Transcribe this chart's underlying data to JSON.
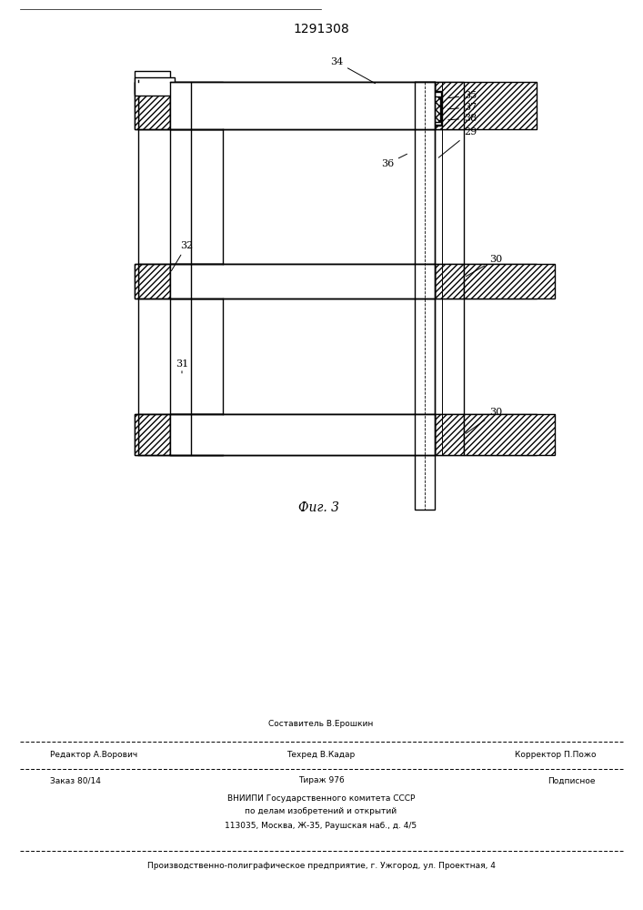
{
  "patent_number": "1291308",
  "fig_label": "Фиг. 3",
  "background_color": "#ffffff",
  "line_color": "#000000",
  "footer": {
    "line1_center_top": "Составитель В.Ерошкин",
    "line1_left": "Редактор А.Ворович",
    "line1_center": "Техред В.Кадар",
    "line1_right": "Корректор П.Пожо",
    "line2_left": "Заказ 80/14",
    "line2_center": "Тираж 976",
    "line2_right": "Подписное",
    "line3": "ВНИИПИ Государственного комитета СССР",
    "line4": "по делам изобретений и открытий",
    "line5": "113035, Москва, Ж-35, Раушская наб., д. 4/5",
    "line6": "Производственно-полиграфическое предприятие, г. Ужгород, ул. Проектная, 4"
  }
}
